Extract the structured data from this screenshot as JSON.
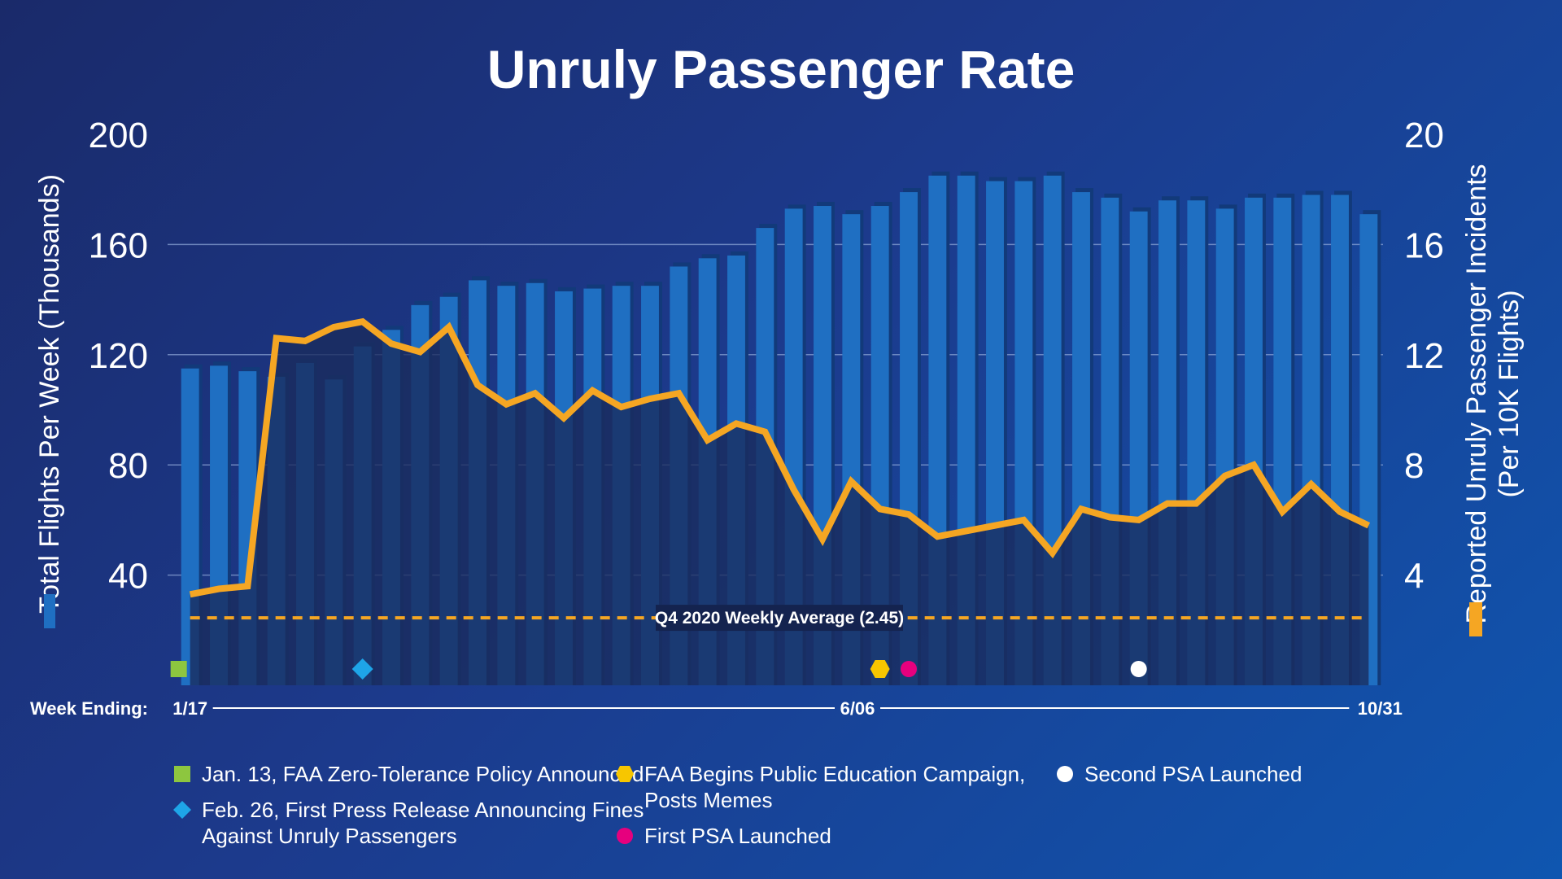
{
  "chart_data": {
    "type": "bar",
    "title": "Unruly Passenger Rate",
    "y_left": {
      "label": "Total Flights Per Week (Thousands)",
      "ticks": [
        "40",
        "80",
        "120",
        "160",
        "200"
      ],
      "range": [
        0,
        200
      ]
    },
    "y_right": {
      "label_line1": "Reported Unruly Passenger Incidents",
      "label_line2": "(Per 10K Flights)",
      "ticks": [
        "4",
        "8",
        "12",
        "16",
        "20"
      ],
      "range": [
        0,
        20
      ]
    },
    "x_axis": {
      "label": "Week Ending:",
      "start_label": "1/17",
      "mid_label": "6/06",
      "end_label": "10/31"
    },
    "colors": {
      "bars": "#1f6fc2",
      "bar_top": "#123a7a",
      "line": "#f5a623",
      "grid": "#8fa8d8",
      "avg_line": "#f5a623"
    },
    "series": [
      {
        "name": "Total Flights Per Week (Thousands)",
        "kind": "bar",
        "axis": "left",
        "values": [
          115,
          116,
          114,
          112,
          117,
          111,
          123,
          129,
          138,
          141,
          147,
          145,
          146,
          143,
          144,
          145,
          145,
          152,
          155,
          156,
          166,
          173,
          174,
          171,
          174,
          179,
          185,
          185,
          183,
          183,
          185,
          179,
          177,
          172,
          176,
          176,
          173,
          177,
          177,
          178,
          178,
          171
        ]
      },
      {
        "name": "Reported Unruly Passenger Incidents (Per 10K Flights)",
        "kind": "line",
        "axis": "right",
        "values": [
          3.3,
          3.5,
          3.6,
          12.6,
          12.5,
          13.0,
          13.2,
          12.4,
          12.1,
          13.0,
          10.9,
          10.2,
          10.6,
          9.7,
          10.7,
          10.1,
          10.4,
          10.6,
          8.9,
          9.5,
          9.2,
          7.1,
          5.3,
          7.4,
          6.4,
          6.2,
          5.4,
          5.6,
          5.8,
          6.0,
          4.8,
          6.4,
          6.1,
          6.0,
          6.6,
          6.6,
          7.6,
          8.0,
          6.3,
          7.3,
          6.3,
          5.8
        ]
      }
    ],
    "average": {
      "label": "Q4 2020 Weekly Average (2.45)",
      "value": 2.45
    },
    "event_markers": [
      {
        "name": "Jan. 13, FAA Zero-Tolerance Policy Announced",
        "week_index": 0,
        "shape": "square",
        "color": "#8dc63f"
      },
      {
        "name": "Feb. 26, First Press Release Announcing Fines Against Unruly Passengers",
        "week_index": 6,
        "shape": "diamond",
        "color": "#1ea5e8"
      },
      {
        "name": "FAA Begins Public Education Campaign, Posts Memes",
        "week_index": 24,
        "shape": "hexagon",
        "color": "#f7c600"
      },
      {
        "name": "First PSA Launched",
        "week_index": 25,
        "shape": "circle",
        "color": "#e6007e"
      },
      {
        "name": "Second PSA Launched",
        "week_index": 33,
        "shape": "circle",
        "color": "#ffffff"
      }
    ]
  },
  "legend": [
    {
      "label": "Jan. 13, FAA Zero-Tolerance Policy Announced",
      "shape": "square",
      "color": "#8dc63f"
    },
    {
      "label": "Feb. 26, First Press Release Announcing Fines\nAgainst Unruly Passengers",
      "shape": "diamond",
      "color": "#1ea5e8"
    },
    {
      "label": "FAA Begins Public Education Campaign,\nPosts Memes",
      "shape": "hexagon",
      "color": "#f7c600"
    },
    {
      "label": "First PSA Launched",
      "shape": "circle",
      "color": "#e6007e"
    },
    {
      "label": "Second PSA Launched",
      "shape": "circle",
      "color": "#ffffff"
    }
  ]
}
